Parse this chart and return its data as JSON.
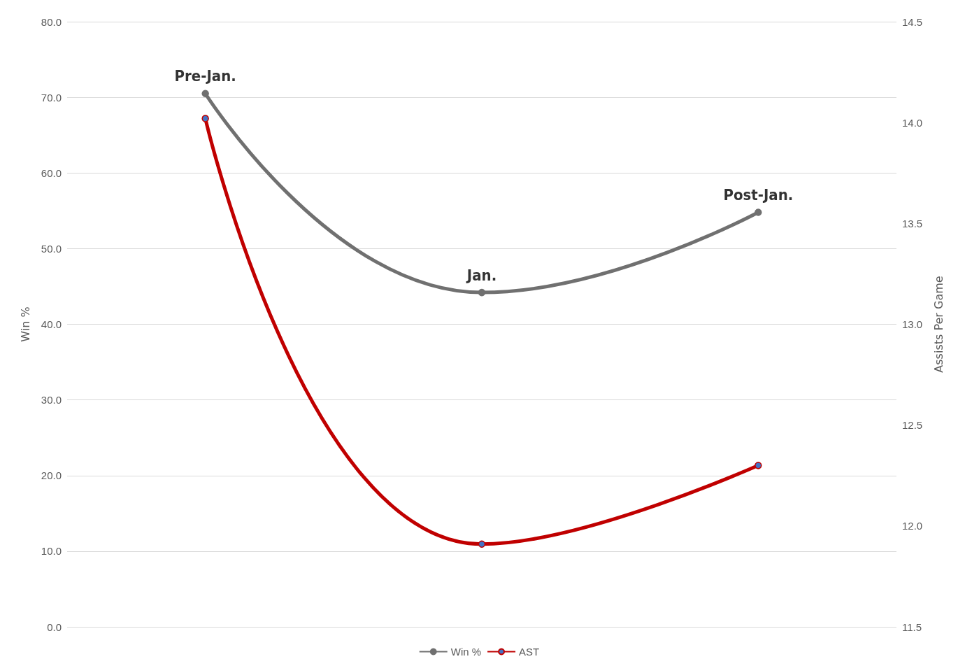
{
  "chart_data": {
    "type": "line",
    "categories": [
      null,
      null,
      null
    ],
    "ylabel": "Win %",
    "y2label": "Assists Per Game",
    "series": [
      {
        "name": "Win %",
        "color": "#707070",
        "values": [
          70.5,
          44.2,
          54.8
        ]
      },
      {
        "name": "AST",
        "color": "#c00000",
        "axis": "y2",
        "values": [
          14.02,
          11.91,
          12.3
        ]
      }
    ],
    "annotations": [
      {
        "text": "Pre-Jan.",
        "y": 70.5
      },
      {
        "text": "Jan.",
        "y": 44.2
      },
      {
        "text": "Post-Jan.",
        "y": 54.8
      }
    ],
    "ylim": [
      0,
      80
    ],
    "yticks": [
      {
        "value": 0,
        "label": "0.0"
      },
      {
        "value": 10,
        "label": "10.0"
      },
      {
        "value": 20,
        "label": "20.0"
      },
      {
        "value": 30,
        "label": "30.0"
      },
      {
        "value": 40,
        "label": "40.0"
      },
      {
        "value": 50,
        "label": "50.0"
      },
      {
        "value": 60,
        "label": "60.0"
      },
      {
        "value": 70,
        "label": "70.0"
      },
      {
        "value": 80,
        "label": "80.0"
      }
    ],
    "y2lim": [
      11.5,
      14.5
    ],
    "y2ticks": [
      {
        "value": 11.5,
        "label": "11.5"
      },
      {
        "value": 12,
        "label": "12.0"
      },
      {
        "value": 12.5,
        "label": "12.5"
      },
      {
        "value": 13,
        "label": "13.0"
      },
      {
        "value": 13.5,
        "label": "13.5"
      },
      {
        "value": 14,
        "label": "14.0"
      },
      {
        "value": 14.5,
        "label": "14.5"
      }
    ],
    "grid": "y",
    "legend": "bottom",
    "marker": "circle",
    "line_style": "solid"
  }
}
